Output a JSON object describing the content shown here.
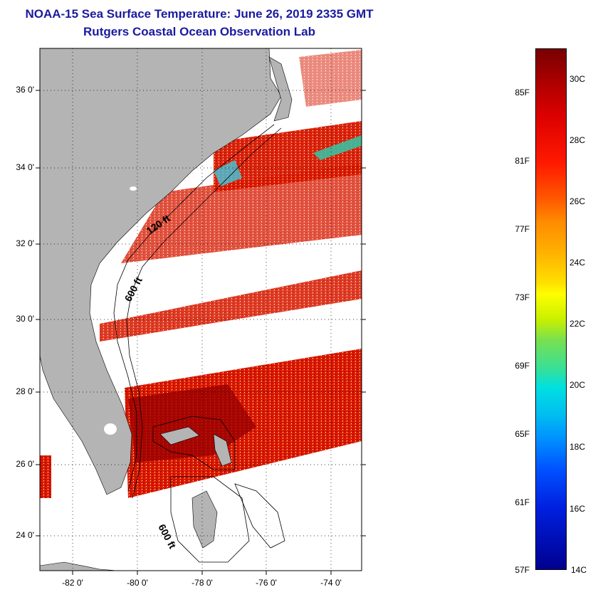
{
  "title": {
    "line1": "NOAA-15 Sea Surface Temperature:  June 26, 2019 2335 GMT",
    "line2": "Rutgers Coastal Ocean Observation Lab"
  },
  "map": {
    "lat_labels": [
      "36 0'",
      "34 0'",
      "32 0'",
      "30 0'",
      "28 0'",
      "26 0'",
      "24 0'"
    ],
    "lon_labels": [
      "-82 0'",
      "-80 0'",
      "-78 0'",
      "-76 0'",
      "-74 0'"
    ],
    "isobath_labels": [
      "120 ft",
      "600 ft",
      "600 ft"
    ],
    "colors": {
      "land": "#b4b4b4",
      "no_data": "#ffffff",
      "sst_warm": "#cc1100",
      "sst_hot": "#8b0000",
      "grid": "#000000"
    }
  },
  "colorbar": {
    "celsius_labels": [
      "30C",
      "28C",
      "26C",
      "24C",
      "22C",
      "20C",
      "18C",
      "16C",
      "14C"
    ],
    "fahrenheit_labels": [
      "85F",
      "81F",
      "77F",
      "73F",
      "69F",
      "65F",
      "61F",
      "57F"
    ]
  }
}
